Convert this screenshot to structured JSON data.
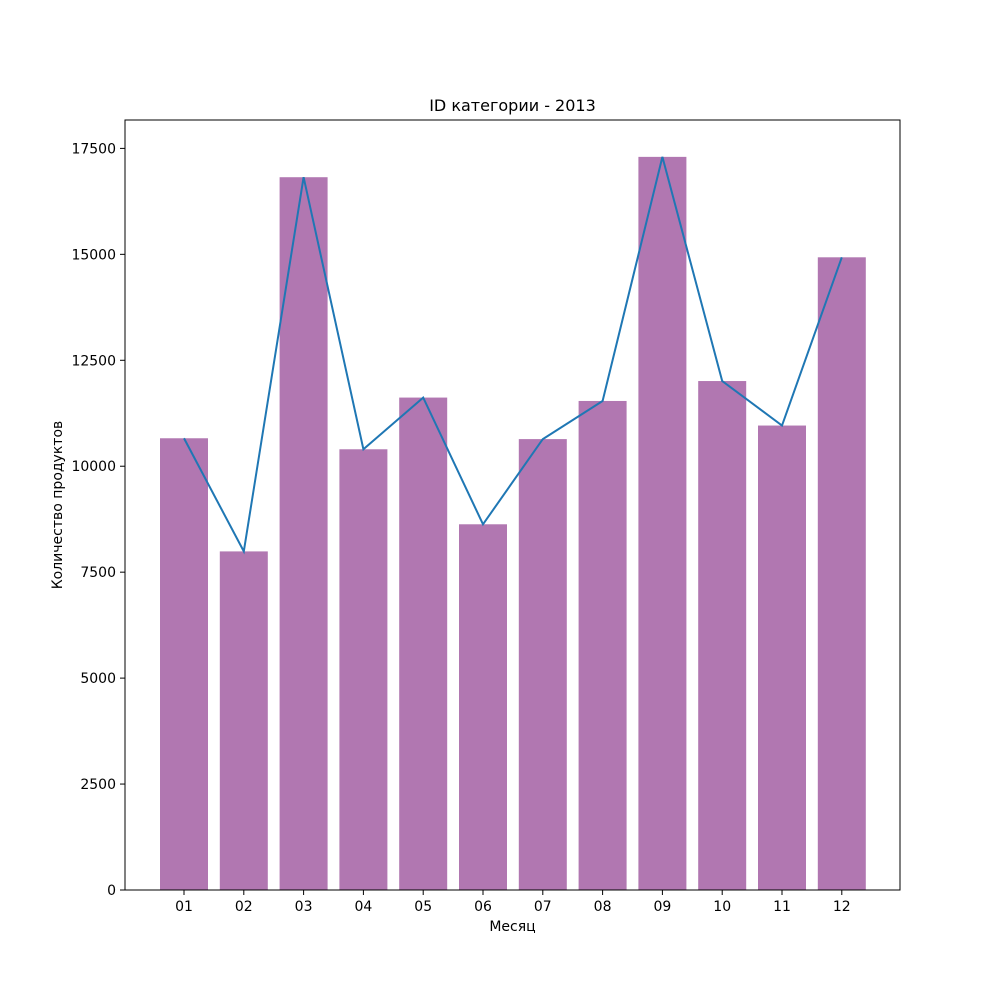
{
  "chart_data": {
    "type": "bar",
    "title": "ID категории - 2013",
    "xlabel": "Месяц",
    "ylabel": "Количество продуктов",
    "categories": [
      "01",
      "02",
      "03",
      "04",
      "05",
      "06",
      "07",
      "08",
      "09",
      "10",
      "11",
      "12"
    ],
    "series": [
      {
        "kind": "bar",
        "values": [
          10660,
          7990,
          16820,
          10400,
          11620,
          8630,
          10640,
          11540,
          17300,
          12010,
          10960,
          14930
        ],
        "color": "#b177b1"
      },
      {
        "kind": "line",
        "values": [
          10660,
          7990,
          16820,
          10400,
          11620,
          8630,
          10640,
          11540,
          17300,
          12010,
          10960,
          14930
        ],
        "color": "#1f77b4"
      }
    ],
    "ylim": [
      0,
      18170
    ],
    "yticks": [
      0,
      2500,
      5000,
      7500,
      10000,
      12500,
      15000,
      17500
    ],
    "grid": false,
    "legend": "none"
  }
}
